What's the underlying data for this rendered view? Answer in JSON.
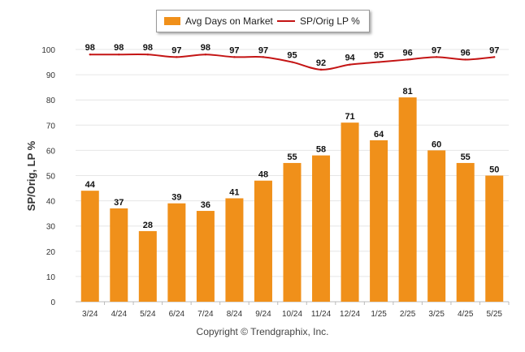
{
  "legend": {
    "bar_label": "Avg Days on Market",
    "line_label": "SP/Orig LP %"
  },
  "copyright": "Copyright © Trendgraphix, Inc.",
  "chart_data": {
    "type": "bar",
    "categories": [
      "3/24",
      "4/24",
      "5/24",
      "6/24",
      "7/24",
      "8/24",
      "9/24",
      "10/24",
      "11/24",
      "12/24",
      "1/25",
      "2/25",
      "3/25",
      "4/25",
      "5/25"
    ],
    "series": [
      {
        "name": "Avg Days on Market",
        "type": "bar",
        "color": "#F0901A",
        "values": [
          44,
          37,
          28,
          39,
          36,
          41,
          48,
          55,
          58,
          71,
          64,
          81,
          60,
          55,
          50
        ]
      },
      {
        "name": "SP/Orig LP %",
        "type": "line",
        "color": "#C41414",
        "values": [
          98,
          98,
          98,
          97,
          98,
          97,
          97,
          95,
          92,
          94,
          95,
          96,
          97,
          96,
          97
        ]
      }
    ],
    "ylabel": "SP/Orig, LP %",
    "xlabel": "",
    "ylim": [
      0,
      100
    ],
    "yticks": [
      0,
      10,
      20,
      30,
      40,
      50,
      60,
      70,
      80,
      90,
      100
    ],
    "grid": true,
    "legend_position": "top-center"
  }
}
